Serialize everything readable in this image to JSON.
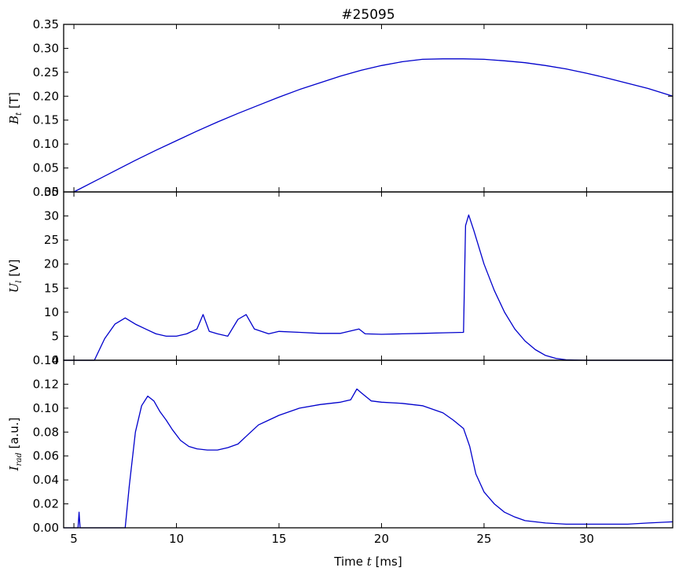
{
  "chart_data": [
    {
      "type": "line",
      "title": "#25095",
      "ylabel": {
        "symbol": "B",
        "subscript": "t",
        "unit": "[T]"
      },
      "xlim": [
        4.5,
        34.2
      ],
      "ylim": [
        0.0,
        0.35
      ],
      "xticks": [
        5,
        10,
        15,
        20,
        25,
        30
      ],
      "yticks": [
        "0.00",
        "0.05",
        "0.10",
        "0.15",
        "0.20",
        "0.25",
        "0.30",
        "0.35"
      ],
      "show_xticklabels": false,
      "color": "#0000cc",
      "series": [
        {
          "x": [
            5,
            6,
            7,
            8,
            9,
            10,
            11,
            12,
            13,
            14,
            15,
            16,
            17,
            18,
            19,
            20,
            21,
            22,
            23,
            24,
            25,
            26,
            27,
            28,
            29,
            30,
            31,
            32,
            33,
            34.2
          ],
          "values": [
            0.0,
            0.022,
            0.044,
            0.066,
            0.087,
            0.107,
            0.127,
            0.146,
            0.164,
            0.181,
            0.198,
            0.214,
            0.228,
            0.242,
            0.254,
            0.264,
            0.272,
            0.277,
            0.278,
            0.278,
            0.277,
            0.274,
            0.27,
            0.264,
            0.257,
            0.248,
            0.238,
            0.227,
            0.216,
            0.2
          ]
        }
      ]
    },
    {
      "type": "line",
      "ylabel": {
        "symbol": "U",
        "subscript": "l",
        "unit": "[V]"
      },
      "xlim": [
        4.5,
        34.2
      ],
      "ylim": [
        0,
        35
      ],
      "xticks": [
        5,
        10,
        15,
        20,
        25,
        30
      ],
      "yticks": [
        "0",
        "5",
        "10",
        "15",
        "20",
        "25",
        "30",
        "35"
      ],
      "show_xticklabels": false,
      "color": "#0000cc",
      "series": [
        {
          "x": [
            4.5,
            5.5,
            6.0,
            6.5,
            7.0,
            7.5,
            8.0,
            8.5,
            9.0,
            9.5,
            10.0,
            10.5,
            11.0,
            11.3,
            11.6,
            12.0,
            12.5,
            13.0,
            13.4,
            13.8,
            14.5,
            15.0,
            16.0,
            17.0,
            18.0,
            18.9,
            19.2,
            20.0,
            21.0,
            22.0,
            23.0,
            24.0,
            24.1,
            24.25,
            24.5,
            25.0,
            25.5,
            26.0,
            26.5,
            27.0,
            27.5,
            28.0,
            28.5,
            29.0,
            30.0,
            34.2
          ],
          "values": [
            0,
            0,
            0,
            4.5,
            7.5,
            8.8,
            7.5,
            6.5,
            5.5,
            5.0,
            5.0,
            5.5,
            6.5,
            9.5,
            6.0,
            5.5,
            5.0,
            8.5,
            9.5,
            6.5,
            5.5,
            6.0,
            5.8,
            5.6,
            5.6,
            6.5,
            5.5,
            5.4,
            5.5,
            5.6,
            5.7,
            5.8,
            28.0,
            30.2,
            27.0,
            20.0,
            14.5,
            10.0,
            6.5,
            4.0,
            2.2,
            1.0,
            0.4,
            0.1,
            0,
            0
          ]
        }
      ]
    },
    {
      "type": "line",
      "ylabel": {
        "symbol": "I",
        "subscript": "rad",
        "unit": "[a.u.]"
      },
      "xlabel": {
        "prefix": "Time ",
        "symbol": "t",
        "unit": " [ms]"
      },
      "xlim": [
        4.5,
        34.2
      ],
      "ylim": [
        0.0,
        0.145
      ],
      "xticks": [
        5,
        10,
        15,
        20,
        25,
        30
      ],
      "xticklabels": [
        "5",
        "10",
        "15",
        "20",
        "25",
        "30"
      ],
      "yticks": [
        "0.00",
        "0.02",
        "0.04",
        "0.06",
        "0.08",
        "0.10",
        "0.12",
        "0.14"
      ],
      "show_xticklabels": true,
      "color": "#0000cc",
      "series": [
        {
          "x": [
            4.5,
            5.2,
            5.25,
            5.3,
            7.5,
            7.7,
            8.0,
            8.3,
            8.6,
            8.9,
            9.2,
            9.5,
            9.8,
            10.2,
            10.6,
            11.0,
            11.5,
            12.0,
            12.5,
            13.0,
            13.5,
            14.0,
            14.5,
            15.0,
            16.0,
            17.0,
            18.0,
            18.5,
            18.8,
            19.0,
            19.5,
            20.0,
            21.0,
            22.0,
            23.0,
            23.5,
            24.0,
            24.3,
            24.6,
            25.0,
            25.5,
            26.0,
            26.5,
            27.0,
            28.0,
            29.0,
            30.0,
            32.0,
            33.0,
            34.2
          ],
          "values": [
            0,
            0,
            0.013,
            0,
            0,
            0.035,
            0.08,
            0.102,
            0.11,
            0.106,
            0.097,
            0.09,
            0.082,
            0.073,
            0.068,
            0.066,
            0.065,
            0.065,
            0.067,
            0.07,
            0.078,
            0.086,
            0.09,
            0.094,
            0.1,
            0.103,
            0.105,
            0.107,
            0.116,
            0.113,
            0.106,
            0.105,
            0.104,
            0.102,
            0.096,
            0.09,
            0.083,
            0.068,
            0.045,
            0.03,
            0.02,
            0.013,
            0.009,
            0.006,
            0.004,
            0.003,
            0.003,
            0.003,
            0.004,
            0.005
          ]
        }
      ]
    }
  ]
}
